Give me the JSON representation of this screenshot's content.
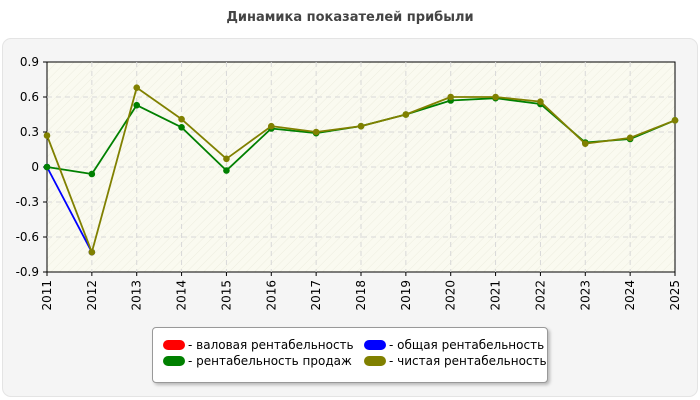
{
  "chart_data": {
    "type": "line",
    "title": "Динамика показателей прибыли",
    "xlabel": "",
    "ylabel": "",
    "x": [
      "2011",
      "2012",
      "2013",
      "2014",
      "2015",
      "2016",
      "2017",
      "2018",
      "2019",
      "2020",
      "2021",
      "2022",
      "2023",
      "2024",
      "2025"
    ],
    "ylim": [
      -0.9,
      0.9
    ],
    "yticks": [
      0.9,
      0.6,
      0.3,
      0,
      -0.3,
      -0.6,
      -0.9
    ],
    "ytick_labels": [
      "0.9",
      "0.6",
      "0.3",
      "0",
      "-0.3",
      "-0.6",
      "-0.9"
    ],
    "grid": true,
    "legend_position": "bottom-center",
    "series": [
      {
        "name": "валовая рентабельность",
        "color": "#ff0000",
        "values": [
          null,
          null,
          null,
          null,
          null,
          null,
          null,
          null,
          null,
          null,
          null,
          null,
          null,
          null,
          null
        ]
      },
      {
        "name": "общая рентабельность",
        "color": "#0000ff",
        "values": [
          0.0,
          -0.73,
          null,
          null,
          null,
          null,
          null,
          null,
          null,
          null,
          null,
          null,
          null,
          null,
          null
        ]
      },
      {
        "name": "рентабельность продаж",
        "color": "#008000",
        "values": [
          0.0,
          -0.06,
          0.53,
          0.34,
          -0.03,
          0.33,
          0.29,
          0.35,
          0.45,
          0.57,
          0.59,
          0.54,
          0.21,
          0.24,
          0.4
        ]
      },
      {
        "name": "чистая рентабельность",
        "color": "#808000",
        "values": [
          0.27,
          -0.73,
          0.68,
          0.41,
          0.07,
          0.35,
          0.3,
          0.35,
          0.45,
          0.6,
          0.6,
          0.56,
          0.2,
          0.25,
          0.4
        ]
      }
    ]
  }
}
